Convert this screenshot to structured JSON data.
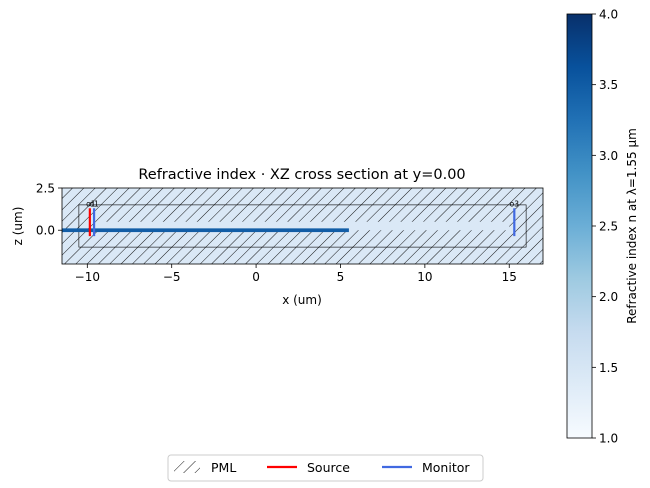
{
  "chart_data": {
    "type": "heatmap",
    "title": "Refractive index · XZ cross section at y=0.00",
    "xlabel": "x (um)",
    "ylabel": "z (um)",
    "xlim": [
      -11.5,
      17.0
    ],
    "ylim": [
      -2.0,
      2.5
    ],
    "xticks": [
      -10,
      -5,
      0,
      5,
      10,
      15
    ],
    "xtick_labels": [
      "−10",
      "−5",
      "0",
      "5",
      "10",
      "15"
    ],
    "yticks": [
      0.0,
      2.5
    ],
    "ytick_labels": [
      "0.0",
      "2.5"
    ],
    "simulation_domain": {
      "x": [
        -10.5,
        16.0
      ],
      "z": [
        -1.0,
        1.5
      ]
    },
    "pml_thickness": 1.0,
    "background_index": 1.44,
    "waveguide": {
      "x": [
        -11.5,
        5.5
      ],
      "z": [
        -0.11,
        0.11
      ],
      "index": 3.48
    },
    "sources": [
      {
        "label": "o1",
        "x": -9.85,
        "z": [
          -0.35,
          1.3
        ]
      }
    ],
    "monitors": [
      {
        "label": "o1",
        "x": -9.6,
        "z": [
          -0.35,
          1.3
        ]
      },
      {
        "label": "o3",
        "x": 15.3,
        "z": [
          -0.35,
          1.3
        ]
      }
    ],
    "colorbar": {
      "label": "Refractive index n at λ=1.55 μm",
      "range": [
        1.0,
        4.0
      ],
      "ticks": [
        1.0,
        1.5,
        2.0,
        2.5,
        3.0,
        3.5,
        4.0
      ],
      "tick_labels": [
        "1.0",
        "1.5",
        "2.0",
        "2.5",
        "3.0",
        "3.5",
        "4.0"
      ],
      "colormap": "Blues"
    },
    "legend": {
      "placement": "bottom-center",
      "entries": [
        {
          "label": "PML",
          "style": "hatch"
        },
        {
          "label": "Source",
          "style": "line",
          "color": "#ff0000"
        },
        {
          "label": "Monitor",
          "style": "line",
          "color": "#4169e1"
        }
      ]
    }
  }
}
